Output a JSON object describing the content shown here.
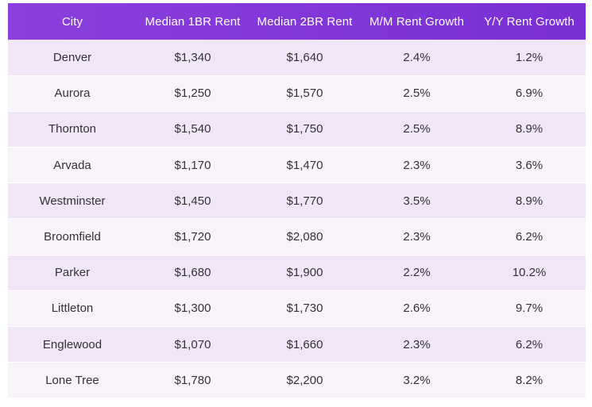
{
  "chart_data": {
    "type": "table",
    "columns": [
      "City",
      "Median 1BR Rent",
      "Median 2BR Rent",
      "M/M Rent Growth",
      "Y/Y Rent Growth"
    ],
    "rows": [
      [
        "Denver",
        "$1,340",
        "$1,640",
        "2.4%",
        "1.2%"
      ],
      [
        "Aurora",
        "$1,250",
        "$1,570",
        "2.5%",
        "6.9%"
      ],
      [
        "Thornton",
        "$1,540",
        "$1,750",
        "2.5%",
        "8.9%"
      ],
      [
        "Arvada",
        "$1,170",
        "$1,470",
        "2.3%",
        "3.6%"
      ],
      [
        "Westminster",
        "$1,450",
        "$1,770",
        "3.5%",
        "8.9%"
      ],
      [
        "Broomfield",
        "$1,720",
        "$2,080",
        "2.3%",
        "6.2%"
      ],
      [
        "Parker",
        "$1,680",
        "$1,900",
        "2.2%",
        "10.2%"
      ],
      [
        "Littleton",
        "$1,300",
        "$1,730",
        "2.6%",
        "9.7%"
      ],
      [
        "Englewood",
        "$1,070",
        "$1,660",
        "2.3%",
        "6.2%"
      ],
      [
        "Lone Tree",
        "$1,780",
        "$2,200",
        "3.2%",
        "8.2%"
      ]
    ]
  },
  "colors": {
    "header_bg": "#8b3fdc",
    "header_text": "#ffffff",
    "row_odd": "#f1e6f8",
    "row_even": "#f7f3f8",
    "cell_text": "#333333"
  }
}
